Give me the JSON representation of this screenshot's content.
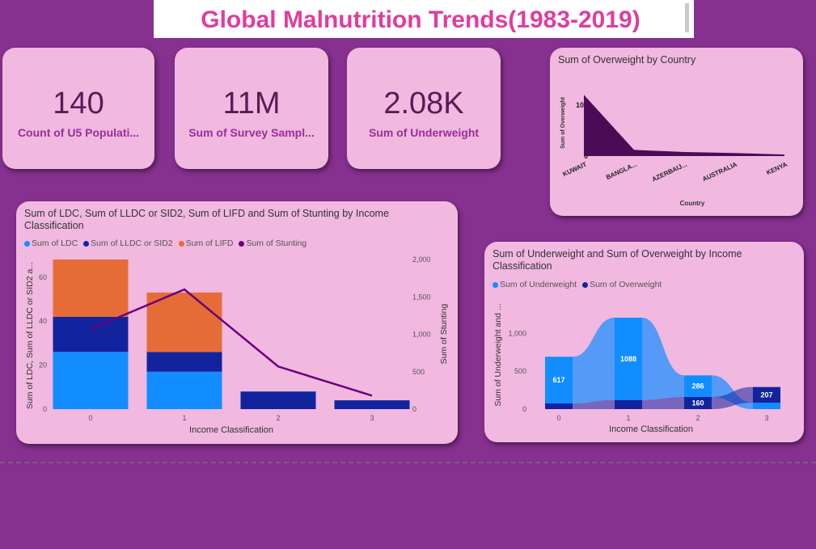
{
  "header": {
    "title": "Global Malnutrition Trends(1983-2019)"
  },
  "kpis": [
    {
      "value": "140",
      "label": "Count of U5 Populati..."
    },
    {
      "value": "11M",
      "label": "Sum of Survey Sampl..."
    },
    {
      "value": "2.08K",
      "label": "Sum of Underweight"
    }
  ],
  "overweight_card": {
    "title": "Sum of Overweight by Country"
  },
  "stacked_card": {
    "title": "Sum of LDC, Sum of LLDC or SID2, Sum of LIFD and Sum of Stunting by Income Classification",
    "legend": [
      "Sum of LDC",
      "Sum of LLDC or SID2",
      "Sum of LIFD",
      "Sum of Stunting"
    ]
  },
  "ribbon_card": {
    "title": "Sum of Underweight and Sum of Overweight by Income Classification",
    "legend": [
      "Sum of Underweight",
      "Sum of Overweight"
    ]
  },
  "colors": {
    "ldc": "#118dff",
    "lldc": "#12239e",
    "lifd": "#e66c37",
    "stunting": "#6b007b",
    "area": "#4d0a57",
    "underweight": "#118dff",
    "overweight": "#12239e"
  },
  "chart_data": [
    {
      "type": "area",
      "title": "Sum of Overweight by Country",
      "xlabel": "Country",
      "ylabel": "Sum of Overweight",
      "categories": [
        "KUWAIT",
        "BANGLA...",
        "AZERBAIJ...",
        "AUSTRALIA",
        "KENYA"
      ],
      "values": [
        120,
        12,
        8,
        6,
        3
      ],
      "yticks": [
        "0",
        "100"
      ],
      "ylim": [
        0,
        130
      ]
    },
    {
      "type": "bar",
      "title": "Sum of LDC, Sum of LLDC or SID2, Sum of LIFD and Sum of Stunting by Income Classification",
      "xlabel": "Income Classification",
      "ylabel": "Sum of LDC, Sum of LLDC or SID2 a...",
      "y2label": "Sum of Stunting",
      "categories": [
        "0",
        "1",
        "2",
        "3"
      ],
      "series": [
        {
          "name": "Sum of LDC",
          "values": [
            26,
            17,
            0,
            0
          ]
        },
        {
          "name": "Sum of LLDC or SID2",
          "values": [
            16,
            9,
            8,
            4
          ]
        },
        {
          "name": "Sum of LIFD",
          "values": [
            26,
            27,
            0,
            0
          ]
        }
      ],
      "line_series": {
        "name": "Sum of Stunting",
        "values": [
          1070,
          1600,
          570,
          180
        ]
      },
      "yticks": [
        "0",
        "20",
        "40",
        "60"
      ],
      "ylim": [
        0,
        68
      ],
      "y2ticks": [
        "0",
        "500",
        "1,000",
        "1,500",
        "2,000"
      ],
      "y2lim": [
        0,
        2000
      ]
    },
    {
      "type": "area",
      "title": "Sum of Underweight and Sum of Overweight by Income Classification",
      "xlabel": "Income Classification",
      "ylabel": "Sum of Underweight and ...",
      "categories": [
        "0",
        "1",
        "2",
        "3"
      ],
      "series": [
        {
          "name": "Sum of Underweight",
          "values": [
            617,
            1088,
            286,
            85
          ]
        },
        {
          "name": "Sum of Overweight",
          "values": [
            75,
            120,
            160,
            207
          ]
        }
      ],
      "data_labels": [
        "617",
        "1088",
        "286",
        "160",
        "207"
      ],
      "yticks": [
        "0",
        "500",
        "1,000"
      ],
      "ylim": [
        0,
        1250
      ]
    }
  ]
}
